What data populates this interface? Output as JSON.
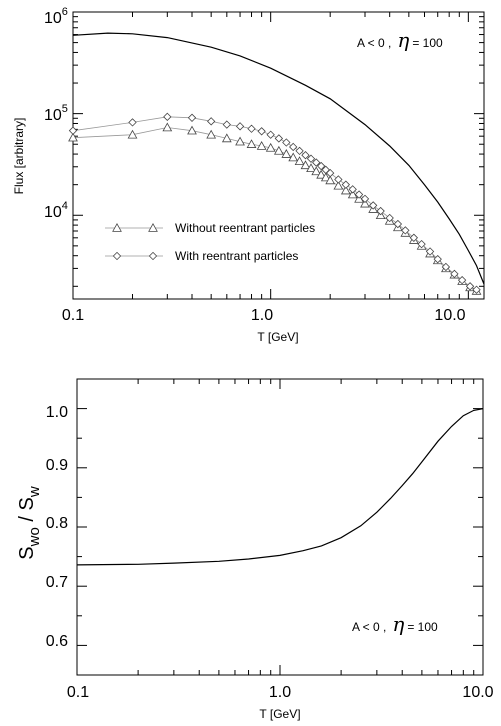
{
  "chart_data": [
    {
      "type": "line",
      "xlabel": "T [GeV]",
      "ylabel": "Flux [arbitrary]",
      "xscale": "log",
      "yscale": "log",
      "xlim": [
        0.1,
        12.0
      ],
      "ylim": [
        1500,
        1000000
      ],
      "grid": false,
      "legend_position": "lower-left",
      "x_ticks": [
        {
          "value": 0.1,
          "label": "0.1"
        },
        {
          "value": 1.0,
          "label": "1.0"
        },
        {
          "value": 10.0,
          "label": "10.0"
        }
      ],
      "y_ticks": [
        {
          "value": 10000,
          "base": "10",
          "exp": "4"
        },
        {
          "value": 100000,
          "base": "10",
          "exp": "5"
        },
        {
          "value": 1000000,
          "base": "10",
          "exp": "6"
        }
      ],
      "annotation": {
        "lhs": "A < 0 ,",
        "eta_symbol": "η",
        "rhs": "= 100"
      },
      "series": [
        {
          "style": "solid",
          "color": "#000000",
          "x": [
            0.1,
            0.15,
            0.2,
            0.3,
            0.5,
            0.7,
            1.0,
            1.5,
            2.0,
            3.0,
            4.0,
            5.0,
            6.0,
            7.0,
            8.0,
            9.0,
            10.0,
            11.0,
            12.0
          ],
          "y": [
            590000,
            620000,
            610000,
            560000,
            450000,
            370000,
            280000,
            190000,
            140000,
            78000,
            48000,
            31000,
            20000,
            13500,
            9200,
            6500,
            4500,
            3200,
            2100
          ]
        },
        {
          "name": "Without reentrant particles",
          "style": "marker-line",
          "marker": "triangle",
          "color": "#777777",
          "x": [
            0.1,
            0.2,
            0.3,
            0.4,
            0.5,
            0.6,
            0.7,
            0.8,
            0.9,
            1.0,
            1.1,
            1.2,
            1.3,
            1.4,
            1.5,
            1.6,
            1.7,
            1.8,
            1.9,
            2.0,
            2.2,
            2.4,
            2.6,
            2.8,
            3.0,
            3.3,
            3.6,
            4.0,
            4.4,
            4.8,
            5.3,
            5.8,
            6.4,
            7.0,
            7.7,
            8.5,
            9.3,
            10.2,
            11.0
          ],
          "y": [
            58000,
            62000,
            73000,
            68000,
            62000,
            57000,
            53000,
            50000,
            48000,
            46000,
            43000,
            40000,
            37000,
            34000,
            31000,
            29000,
            27000,
            25000,
            23500,
            22000,
            19500,
            17500,
            16000,
            14500,
            13000,
            11500,
            10000,
            8800,
            7600,
            6700,
            5700,
            5000,
            4200,
            3600,
            3000,
            2600,
            2250,
            1950,
            1800
          ]
        },
        {
          "name": "With reentrant particles",
          "style": "marker-line",
          "marker": "diamond",
          "color": "#777777",
          "x": [
            0.1,
            0.2,
            0.3,
            0.4,
            0.5,
            0.6,
            0.7,
            0.8,
            0.9,
            1.0,
            1.1,
            1.2,
            1.3,
            1.4,
            1.5,
            1.6,
            1.7,
            1.8,
            1.9,
            2.0,
            2.2,
            2.4,
            2.6,
            2.8,
            3.0,
            3.3,
            3.6,
            4.0,
            4.4,
            4.8,
            5.3,
            5.8,
            6.4,
            7.0,
            7.7,
            8.5,
            9.3,
            10.2,
            11.0
          ],
          "y": [
            68000,
            82000,
            93000,
            91000,
            84000,
            78000,
            75000,
            71000,
            67000,
            62000,
            57000,
            52000,
            47000,
            43000,
            39000,
            36000,
            33000,
            30500,
            28000,
            26000,
            22500,
            20000,
            18000,
            16000,
            14500,
            12500,
            11000,
            9400,
            8200,
            7100,
            6000,
            5200,
            4400,
            3700,
            3100,
            2650,
            2300,
            2000,
            1850
          ]
        }
      ]
    },
    {
      "type": "line",
      "xlabel": "T [GeV]",
      "ylabel": {
        "main": "S",
        "sub1": "wo",
        "sep": " / S",
        "sub2": "w"
      },
      "xscale": "log",
      "xlim": [
        0.1,
        10.0
      ],
      "ylim": [
        0.55,
        1.05
      ],
      "grid": false,
      "x_ticks": [
        {
          "value": 0.1,
          "label": "0.1"
        },
        {
          "value": 1.0,
          "label": "1.0"
        },
        {
          "value": 10.0,
          "label": "10.0"
        }
      ],
      "y_ticks": [
        {
          "value": 0.6,
          "label": "0.6"
        },
        {
          "value": 0.7,
          "label": "0.7"
        },
        {
          "value": 0.8,
          "label": "0.8"
        },
        {
          "value": 0.9,
          "label": "0.9"
        },
        {
          "value": 1.0,
          "label": "1.0"
        }
      ],
      "annotation": {
        "lhs": "A < 0 ,",
        "eta_symbol": "η",
        "rhs": "= 100"
      },
      "series": [
        {
          "style": "solid",
          "color": "#000000",
          "x": [
            0.1,
            0.2,
            0.3,
            0.5,
            0.7,
            1.0,
            1.3,
            1.6,
            2.0,
            2.5,
            3.0,
            3.5,
            4.0,
            4.5,
            5.0,
            6.0,
            7.0,
            8.0,
            9.0,
            10.0
          ],
          "y": [
            0.736,
            0.737,
            0.739,
            0.742,
            0.746,
            0.752,
            0.76,
            0.768,
            0.782,
            0.802,
            0.825,
            0.848,
            0.87,
            0.89,
            0.91,
            0.945,
            0.97,
            0.988,
            0.997,
            1.0
          ]
        }
      ]
    }
  ]
}
